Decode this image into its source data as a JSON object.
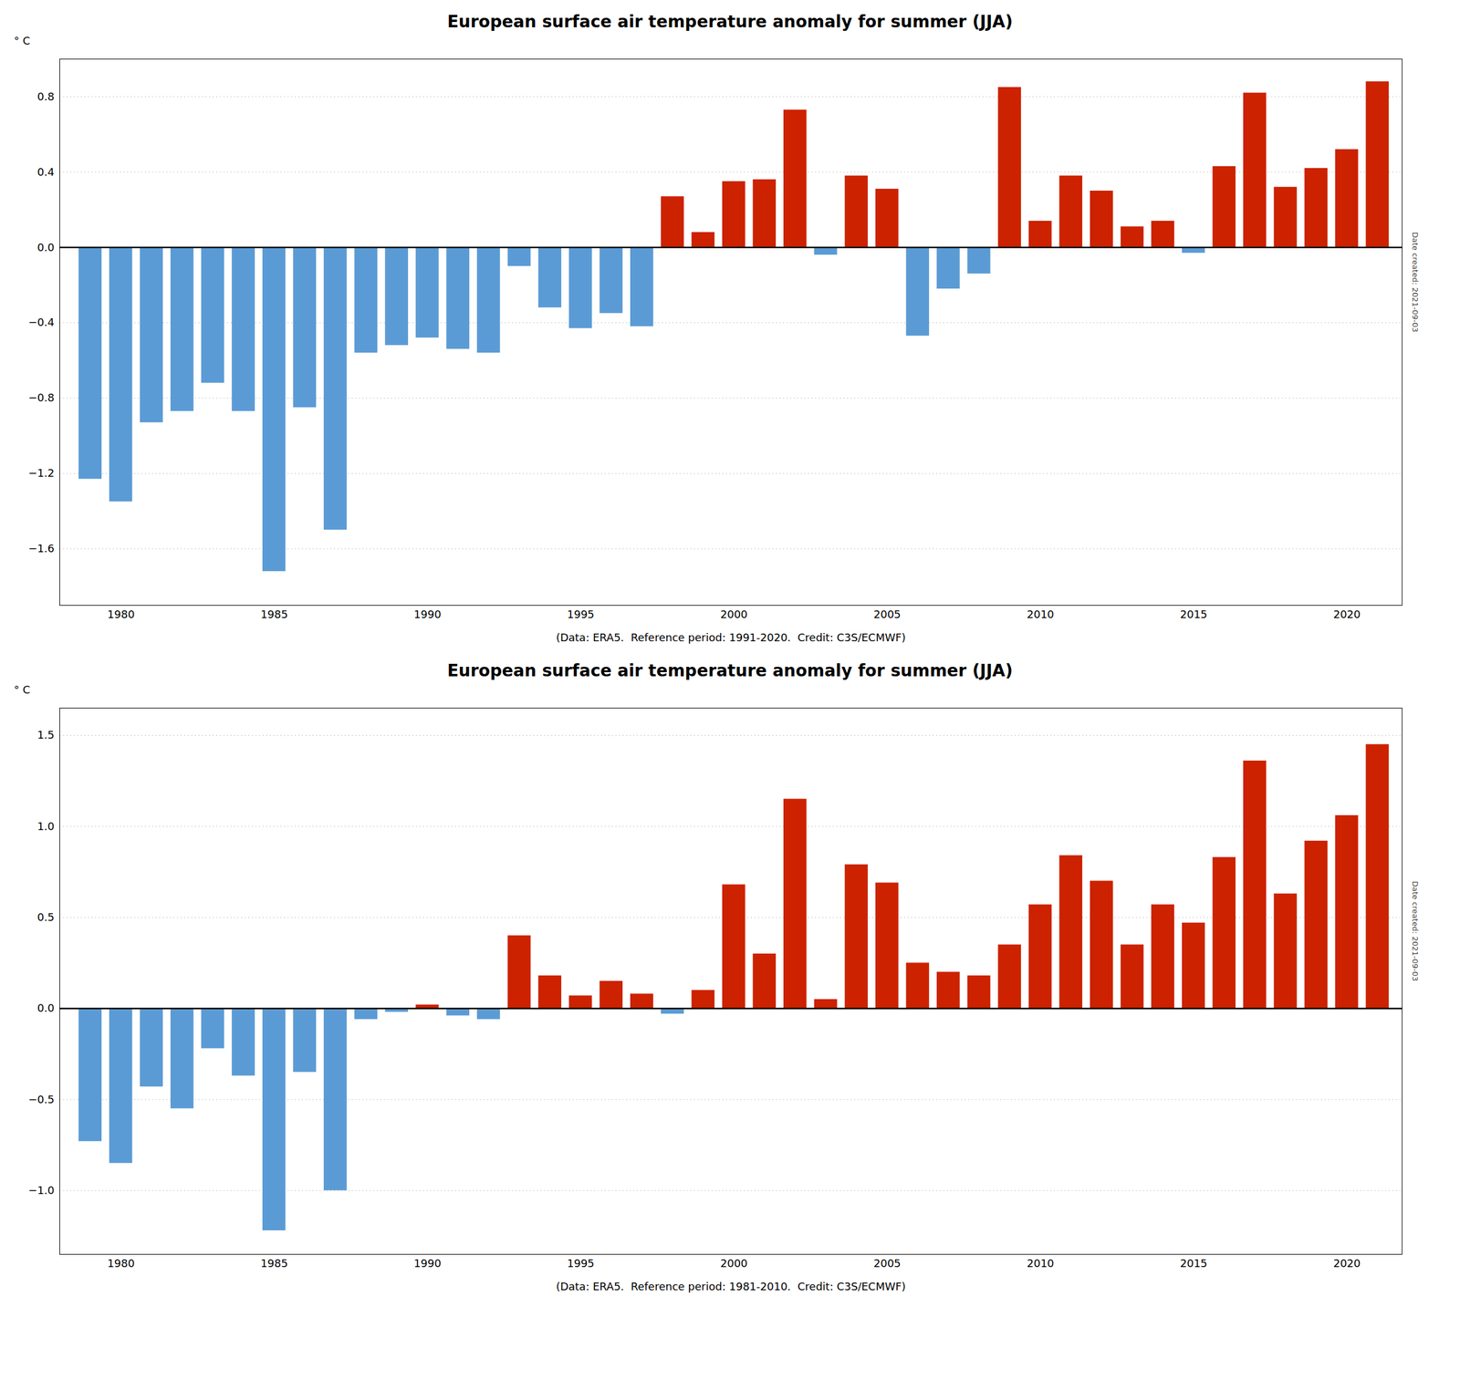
{
  "chart_data": [
    {
      "type": "bar",
      "title": "European surface air temperature anomaly for summer (JJA)",
      "xlabel": "(Data: ERA5.  Reference period: 1991-2020.  Credit: C3S/ECMWF)",
      "ylabel": "° C",
      "annotations": [
        "Date created: 2021-09-03"
      ],
      "x": [
        1979,
        1980,
        1981,
        1982,
        1983,
        1984,
        1985,
        1986,
        1987,
        1988,
        1989,
        1990,
        1991,
        1992,
        1993,
        1994,
        1995,
        1996,
        1997,
        1998,
        1999,
        2000,
        2001,
        2002,
        2003,
        2004,
        2005,
        2006,
        2007,
        2008,
        2009,
        2010,
        2011,
        2012,
        2013,
        2014,
        2015,
        2016,
        2017,
        2018,
        2019,
        2020,
        2021
      ],
      "values": [
        -1.23,
        -1.35,
        -0.93,
        -0.87,
        -0.72,
        -0.87,
        -1.72,
        -0.85,
        -1.5,
        -0.56,
        -0.52,
        -0.48,
        -0.54,
        -0.56,
        -0.1,
        -0.32,
        -0.43,
        -0.35,
        -0.42,
        0.27,
        0.08,
        0.35,
        0.36,
        0.73,
        -0.04,
        0.38,
        0.31,
        -0.47,
        -0.22,
        -0.14,
        0.85,
        0.14,
        0.38,
        0.3,
        0.11,
        0.14,
        -0.03,
        0.43,
        0.82,
        0.32,
        0.42,
        0.52,
        0.88
      ],
      "colors": [
        "#5B9BD5",
        "#5B9BD5",
        "#5B9BD5",
        "#5B9BD5",
        "#5B9BD5",
        "#5B9BD5",
        "#5B9BD5",
        "#5B9BD5",
        "#5B9BD5",
        "#5B9BD5",
        "#5B9BD5",
        "#5B9BD5",
        "#5B9BD5",
        "#5B9BD5",
        "#5B9BD5",
        "#5B9BD5",
        "#5B9BD5",
        "#5B9BD5",
        "#5B9BD5",
        "#CC2200",
        "#CC2200",
        "#CC2200",
        "#CC2200",
        "#CC2200",
        "#5B9BD5",
        "#CC2200",
        "#CC2200",
        "#5B9BD5",
        "#5B9BD5",
        "#5B9BD5",
        "#CC2200",
        "#CC2200",
        "#CC2200",
        "#CC2200",
        "#CC2200",
        "#CC2200",
        "#5B9BD5",
        "#CC2200",
        "#CC2200",
        "#CC2200",
        "#CC2200",
        "#CC2200",
        "#CC2200"
      ],
      "xlim": [
        1978,
        2021.8
      ],
      "xticks": [
        1980,
        1985,
        1990,
        1995,
        2000,
        2005,
        2010,
        2015,
        2020
      ],
      "ylim": [
        -1.9,
        1.0
      ],
      "yticks": [
        -1.6,
        -1.2,
        -0.8,
        -0.4,
        {
          "value": 0.0,
          "label": "0.0"
        },
        0.4,
        0.8
      ],
      "grid": true
    },
    {
      "type": "bar",
      "title": "European surface air temperature anomaly for summer (JJA)",
      "xlabel": "(Data: ERA5.  Reference period: 1981-2010.  Credit: C3S/ECMWF)",
      "ylabel": "° C",
      "annotations": [
        "Date created: 2021-09-03"
      ],
      "x": [
        1979,
        1980,
        1981,
        1982,
        1983,
        1984,
        1985,
        1986,
        1987,
        1988,
        1989,
        1990,
        1991,
        1992,
        1993,
        1994,
        1995,
        1996,
        1997,
        1998,
        1999,
        2000,
        2001,
        2002,
        2003,
        2004,
        2005,
        2006,
        2007,
        2008,
        2009,
        2010,
        2011,
        2012,
        2013,
        2014,
        2015,
        2016,
        2017,
        2018,
        2019,
        2020,
        2021
      ],
      "values": [
        -0.73,
        -0.85,
        -0.43,
        -0.55,
        -0.22,
        -0.37,
        -1.22,
        -0.35,
        -1.0,
        -0.06,
        -0.02,
        0.02,
        -0.04,
        -0.06,
        0.4,
        0.18,
        0.07,
        0.15,
        0.08,
        -0.03,
        0.1,
        0.68,
        0.3,
        1.15,
        0.05,
        0.79,
        0.69,
        0.25,
        0.2,
        0.18,
        0.35,
        0.57,
        0.84,
        0.7,
        0.35,
        0.57,
        0.47,
        0.83,
        1.36,
        0.63,
        0.92,
        1.06,
        1.45
      ],
      "colors": [
        "#5B9BD5",
        "#5B9BD5",
        "#5B9BD5",
        "#5B9BD5",
        "#5B9BD5",
        "#5B9BD5",
        "#5B9BD5",
        "#5B9BD5",
        "#5B9BD5",
        "#5B9BD5",
        "#5B9BD5",
        "#CC2200",
        "#5B9BD5",
        "#5B9BD5",
        "#CC2200",
        "#CC2200",
        "#CC2200",
        "#CC2200",
        "#CC2200",
        "#5B9BD5",
        "#CC2200",
        "#CC2200",
        "#CC2200",
        "#CC2200",
        "#CC2200",
        "#CC2200",
        "#CC2200",
        "#CC2200",
        "#CC2200",
        "#CC2200",
        "#CC2200",
        "#CC2200",
        "#CC2200",
        "#CC2200",
        "#CC2200",
        "#CC2200",
        "#CC2200",
        "#CC2200",
        "#CC2200",
        "#CC2200",
        "#CC2200",
        "#CC2200",
        "#CC2200"
      ],
      "xlim": [
        1978,
        2021.8
      ],
      "xticks": [
        1980,
        1985,
        1990,
        1995,
        2000,
        2005,
        2010,
        2015,
        2020
      ],
      "ylim": [
        -1.35,
        1.65
      ],
      "yticks": [
        {
          "value": -1.0,
          "label": "−1.0"
        },
        -0.5,
        {
          "value": 0.0,
          "label": "0.0"
        },
        0.5,
        {
          "value": 1.0,
          "label": "1.0"
        },
        1.5
      ],
      "grid": true
    }
  ]
}
